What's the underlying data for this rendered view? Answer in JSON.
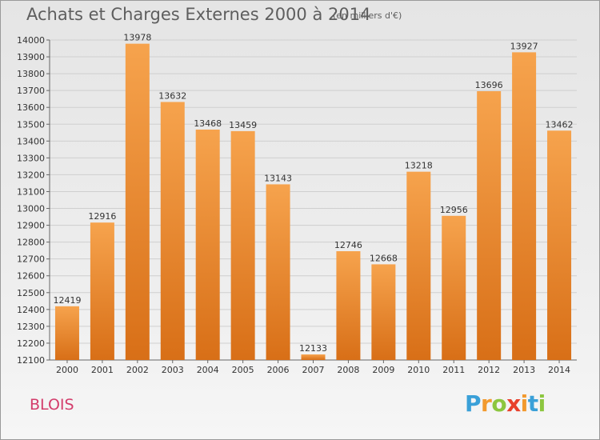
{
  "header": {
    "title": "Achats et Charges Externes 2000 à 2014",
    "subtitle": "(en milliers d'€)"
  },
  "footer": {
    "city": "BLOIS",
    "logo": "Proxiti"
  },
  "colors": {
    "bar_light": "#f6a34d",
    "bar_dark": "#d86f17",
    "grid": "#cfcfcf"
  },
  "chart_data": {
    "type": "bar",
    "title": "Achats et Charges Externes 2000 à 2014",
    "subtitle": "(en milliers d'€)",
    "xlabel": "",
    "ylabel": "",
    "categories": [
      "2000",
      "2001",
      "2002",
      "2003",
      "2004",
      "2005",
      "2006",
      "2007",
      "2008",
      "2009",
      "2010",
      "2011",
      "2012",
      "2013",
      "2014"
    ],
    "values": [
      12419,
      12916,
      13978,
      13632,
      13468,
      13459,
      13143,
      12133,
      12746,
      12668,
      13218,
      12956,
      13696,
      13927,
      13462
    ],
    "ylim": [
      12100,
      14000
    ],
    "yticks": [
      12100,
      12200,
      12300,
      12400,
      12500,
      12600,
      12700,
      12800,
      12900,
      13000,
      13100,
      13200,
      13300,
      13400,
      13500,
      13600,
      13700,
      13800,
      13900,
      14000
    ],
    "grid": true,
    "data_labels": true
  }
}
